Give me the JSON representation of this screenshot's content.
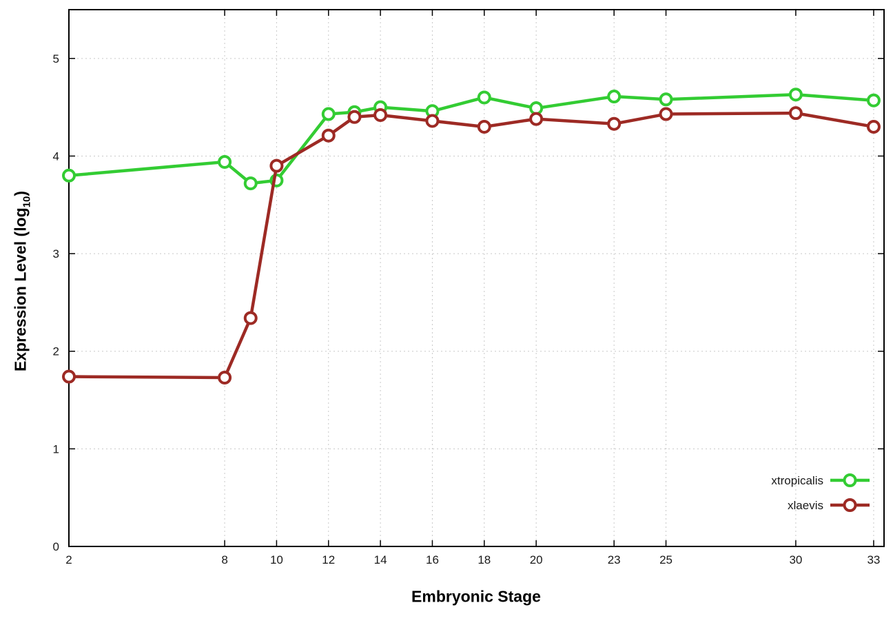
{
  "chart_data": {
    "type": "line",
    "title": "",
    "xlabel": "Embryonic Stage",
    "ylabel": "Expression Level (log10)",
    "ylabel_parts": {
      "pre": "Expression Level (log",
      "sub": "10",
      "post": ")"
    },
    "x": [
      2,
      8,
      9,
      10,
      12,
      13,
      14,
      16,
      18,
      20,
      23,
      25,
      30,
      33
    ],
    "xticks": [
      2,
      8,
      10,
      12,
      14,
      16,
      18,
      20,
      23,
      25,
      30,
      33
    ],
    "yticks": [
      0,
      1,
      2,
      3,
      4,
      5
    ],
    "xlim": [
      2,
      33.4
    ],
    "ylim": [
      0,
      5.5
    ],
    "grid": true,
    "legend_position": "bottom-right",
    "colors": {
      "background": "#ffffff",
      "grid": "#c8c8c8",
      "axis": "#000000",
      "xtropicalis": "#33cc33",
      "xlaevis": "#9d2a24"
    },
    "series": [
      {
        "name": "xtropicalis",
        "color": "#33cc33",
        "values": [
          3.8,
          3.94,
          3.72,
          3.75,
          4.43,
          4.45,
          4.5,
          4.46,
          4.6,
          4.49,
          4.61,
          4.58,
          4.63,
          4.57
        ]
      },
      {
        "name": "xlaevis",
        "color": "#9d2a24",
        "values": [
          1.74,
          1.73,
          2.34,
          3.9,
          4.21,
          4.4,
          4.42,
          4.36,
          4.3,
          4.38,
          4.33,
          4.43,
          4.44,
          4.3
        ]
      }
    ]
  }
}
